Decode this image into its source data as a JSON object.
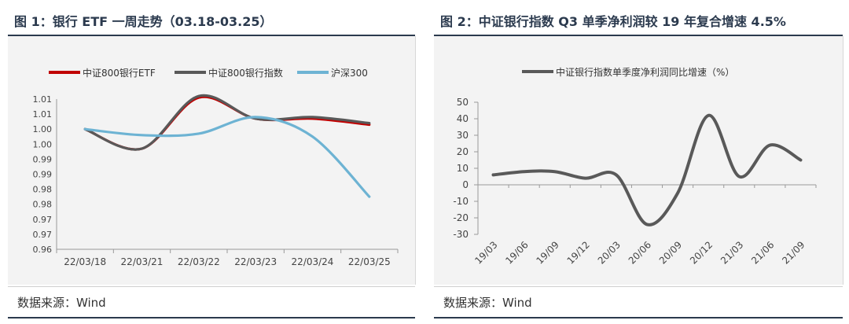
{
  "left": {
    "title": "图 1：银行 ETF 一周走势（03.18-03.25）",
    "source": "数据来源：Wind"
  },
  "right": {
    "title": "图 2：中证银行指数 Q3 单季净利润较 19 年复合增速 4.5%",
    "source": "数据来源：Wind"
  },
  "chart_data": [
    {
      "type": "line",
      "title": "银行 ETF 一周走势（03.18-03.25）",
      "categories": [
        "22/03/18",
        "22/03/21",
        "22/03/22",
        "22/03/23",
        "22/03/24",
        "22/03/25"
      ],
      "ylim": [
        0.96,
        1.01
      ],
      "yticks": [
        "0.96",
        "0.97",
        "0.97",
        "0.98",
        "0.98",
        "0.99",
        "0.99",
        "1.00",
        "1.00",
        "1.01",
        "1.01"
      ],
      "legend_position": "top",
      "series": [
        {
          "name": "中证800银行ETF",
          "color": "#c00000",
          "values": [
            1.0,
            0.9935,
            1.0105,
            1.0035,
            1.0035,
            1.0015
          ]
        },
        {
          "name": "中证800银行指数",
          "color": "#595959",
          "values": [
            1.0,
            0.9935,
            1.011,
            1.0035,
            1.004,
            1.002
          ]
        },
        {
          "name": "沪深300",
          "color": "#6db3d3",
          "values": [
            1.0,
            0.998,
            0.9985,
            1.004,
            0.9975,
            0.9775
          ]
        }
      ]
    },
    {
      "type": "line",
      "title": "中证银行指数 Q3 单季净利润较 19 年复合增速 4.5%",
      "categories": [
        "19/03",
        "19/06",
        "19/09",
        "19/12",
        "20/03",
        "20/06",
        "20/09",
        "20/12",
        "21/03",
        "21/06",
        "21/09"
      ],
      "ylim": [
        -30,
        50
      ],
      "yticks": [
        "-30",
        "-20",
        "-10",
        "0",
        "10",
        "20",
        "30",
        "40",
        "50"
      ],
      "legend_position": "top",
      "series": [
        {
          "name": "中证银行指数单季度净利润同比增速（%）",
          "color": "#595959",
          "values": [
            6,
            8,
            8,
            4,
            6,
            -24,
            -5,
            42,
            5,
            24,
            15
          ]
        }
      ]
    }
  ]
}
